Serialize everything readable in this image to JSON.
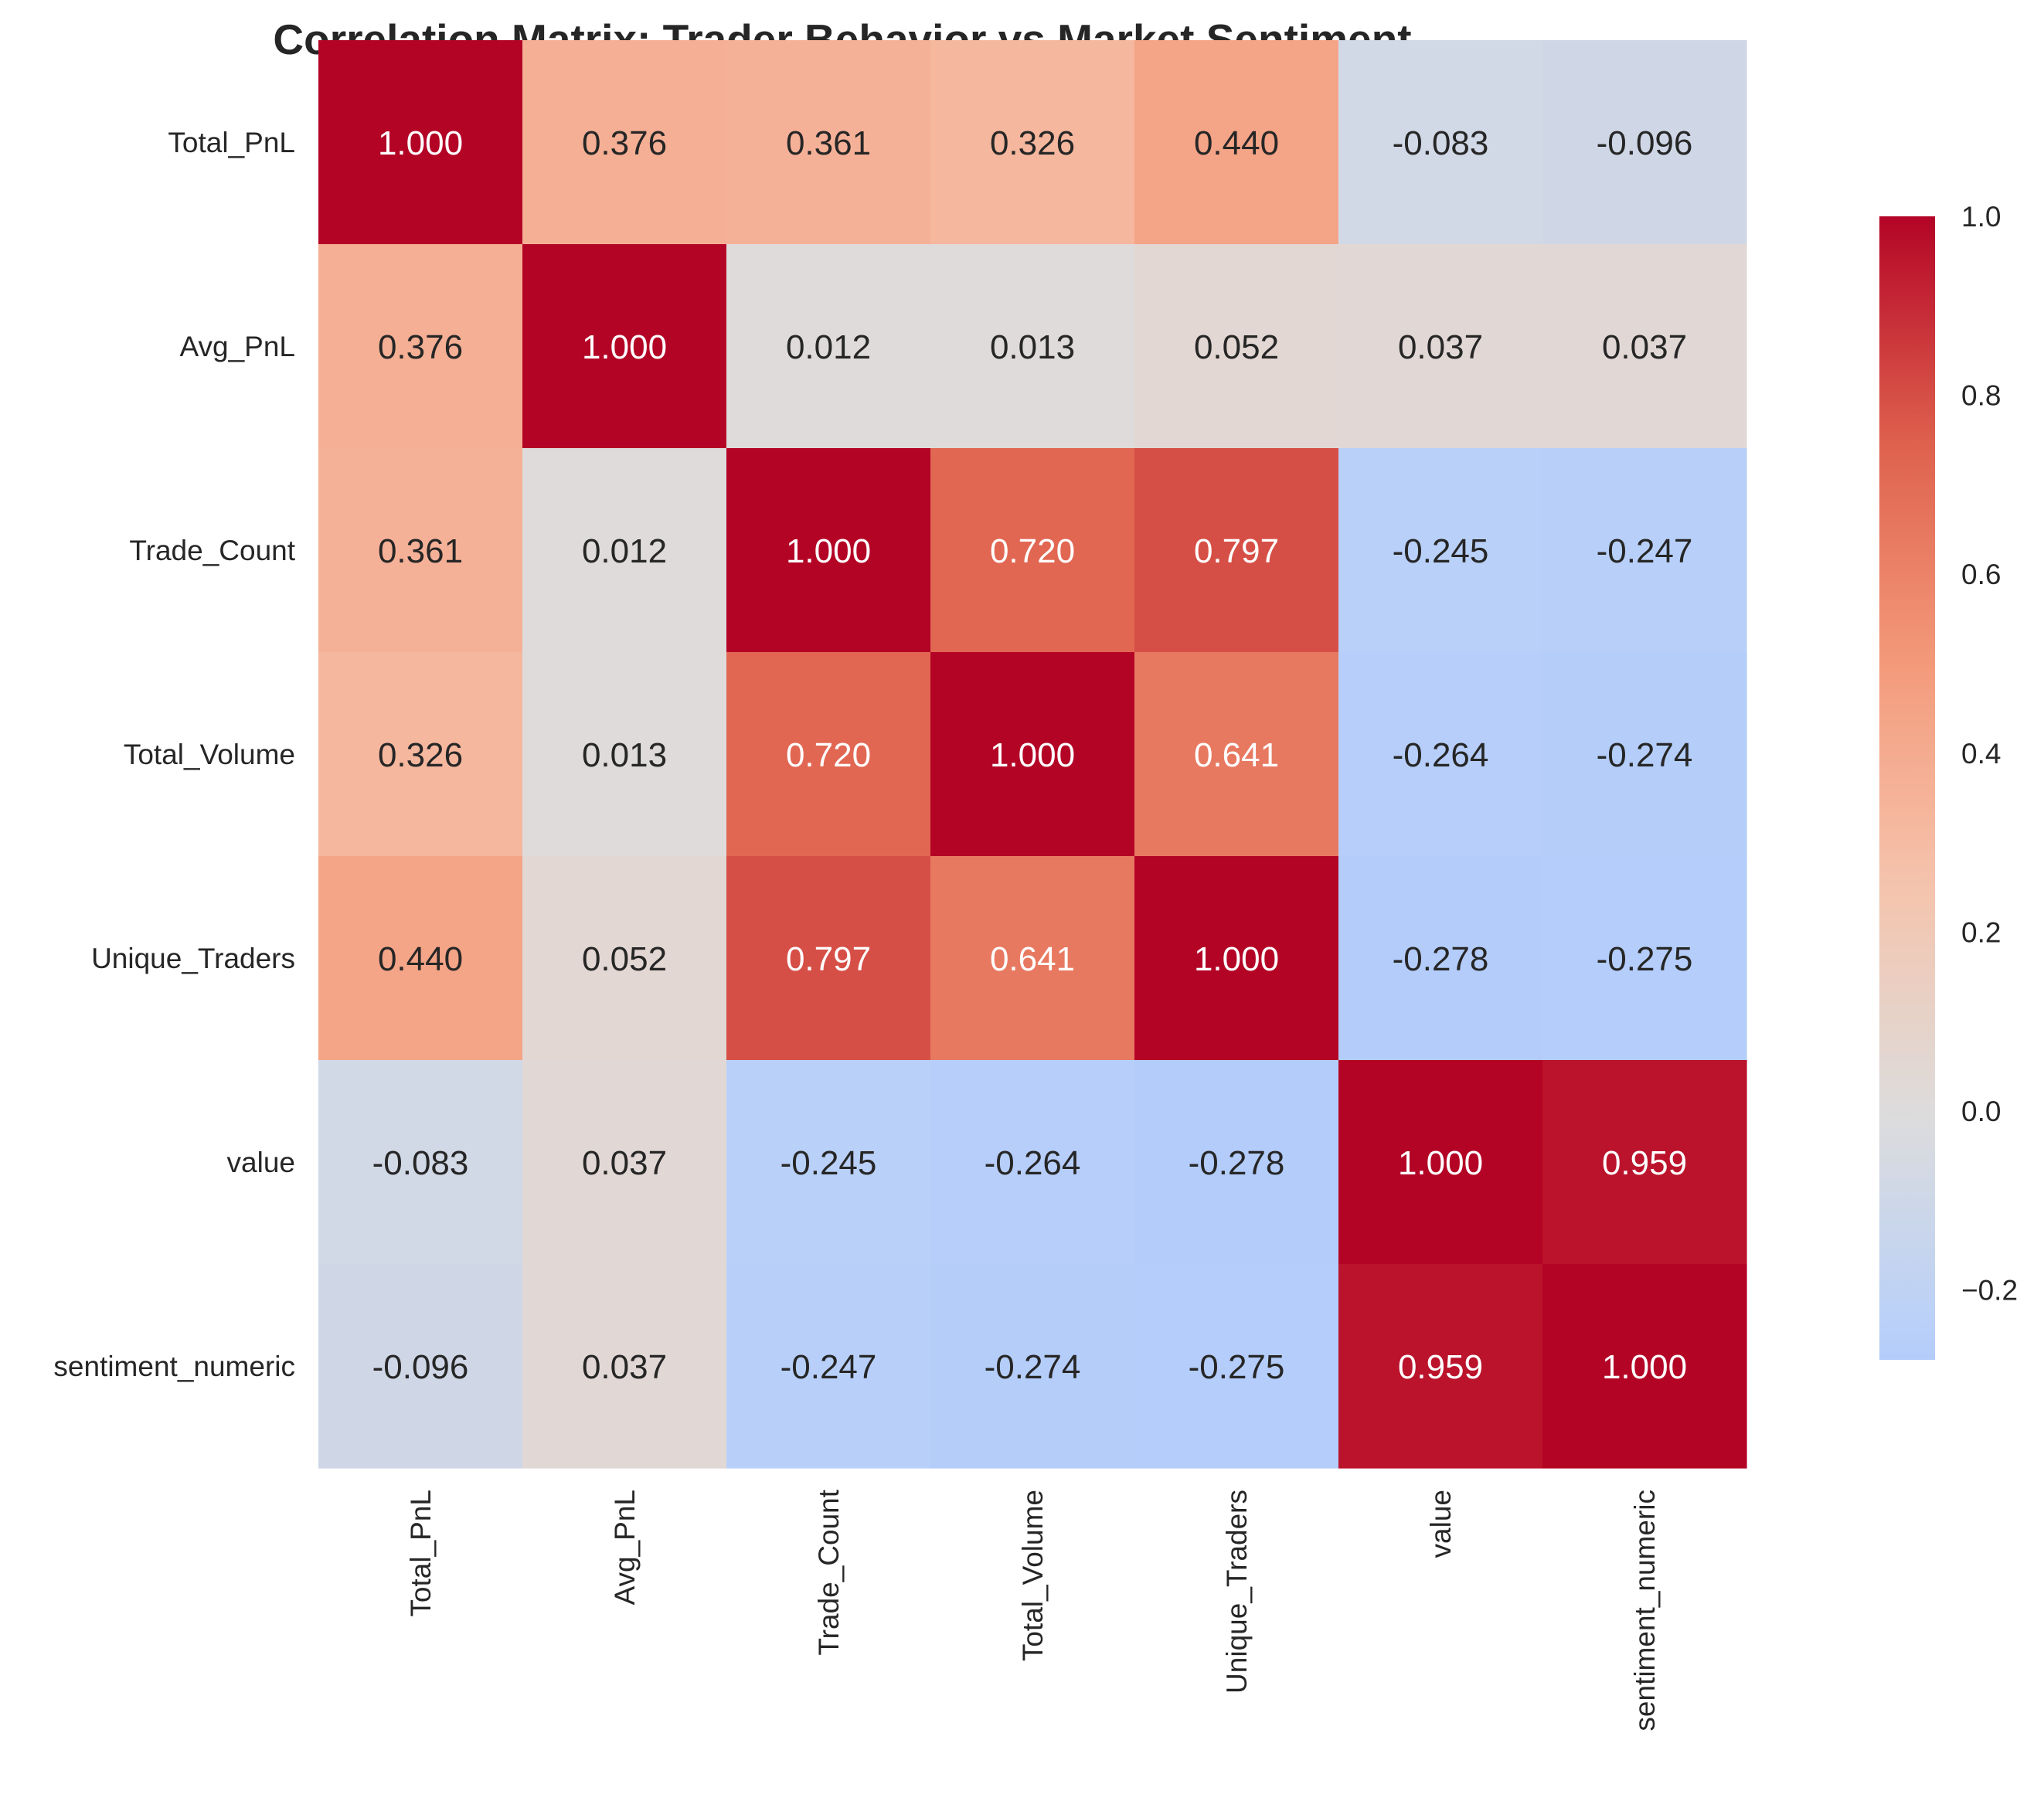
{
  "chart_data": {
    "type": "heatmap",
    "title": "Correlation Matrix: Trader Behavior vs Market Sentiment",
    "xlabel": "",
    "ylabel": "",
    "row_labels": [
      "Total_PnL",
      "Avg_PnL",
      "Trade_Count",
      "Total_Volume",
      "Unique_Traders",
      "value",
      "sentiment_numeric"
    ],
    "col_labels": [
      "Total_PnL",
      "Avg_PnL",
      "Trade_Count",
      "Total_Volume",
      "Unique_Traders",
      "value",
      "sentiment_numeric"
    ],
    "values": [
      [
        1.0,
        0.376,
        0.361,
        0.326,
        0.44,
        -0.083,
        -0.096
      ],
      [
        0.376,
        1.0,
        0.012,
        0.013,
        0.052,
        0.037,
        0.037
      ],
      [
        0.361,
        0.012,
        1.0,
        0.72,
        0.797,
        -0.245,
        -0.247
      ],
      [
        0.326,
        0.013,
        0.72,
        1.0,
        0.641,
        -0.264,
        -0.274
      ],
      [
        0.44,
        0.052,
        0.797,
        0.641,
        1.0,
        -0.278,
        -0.275
      ],
      [
        -0.083,
        0.037,
        -0.245,
        -0.264,
        -0.278,
        1.0,
        0.959
      ],
      [
        -0.096,
        0.037,
        -0.247,
        -0.274,
        -0.275,
        0.959,
        1.0
      ]
    ],
    "annotation_format": "0.000",
    "colormap": "coolwarm",
    "center": 0,
    "color_range": [
      -0.278,
      1.0
    ],
    "colorbar_ticks": [
      "1.0",
      "0.8",
      "0.6",
      "0.4",
      "0.2",
      "0.0",
      "−0.2"
    ],
    "colorbar_tick_values": [
      1.0,
      0.8,
      0.6,
      0.4,
      0.2,
      0.0,
      -0.2
    ],
    "grid": false
  }
}
